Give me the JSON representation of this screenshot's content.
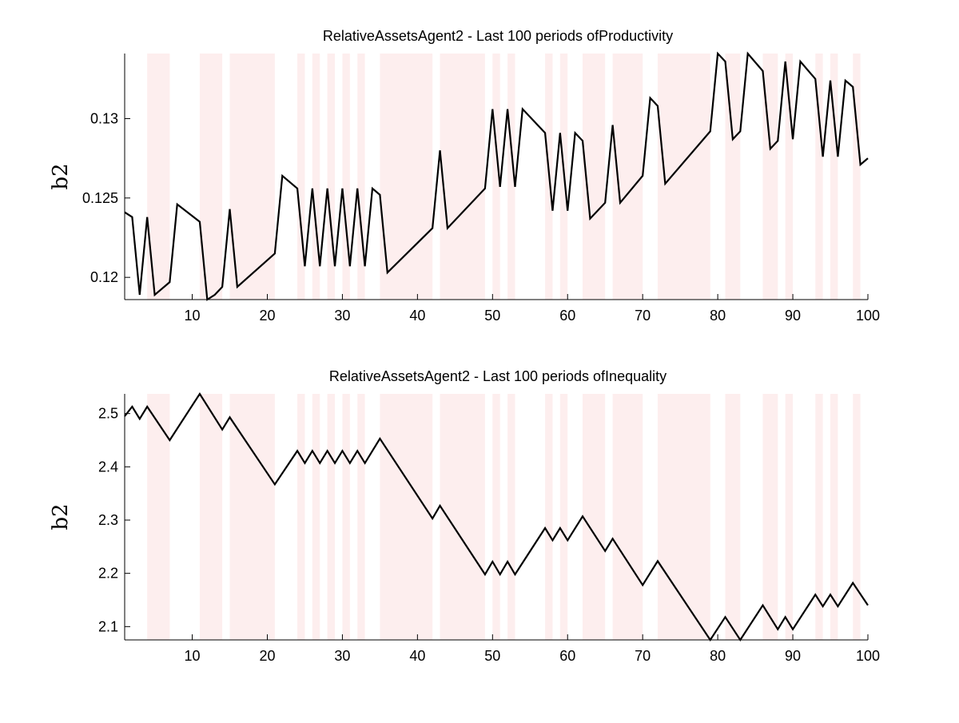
{
  "colors": {
    "background": "#ffffff",
    "shade": "#fdeeee",
    "line": "#000000",
    "axis": "#000000"
  },
  "chart_data": [
    {
      "type": "line",
      "title": "RelativeAssetsAgent2 - Last 100 periods ofProductivity",
      "xlabel": "",
      "ylabel": "b2",
      "xlim": [
        1,
        100
      ],
      "ylim": [
        0.1186,
        0.1341
      ],
      "xticks": [
        10,
        20,
        30,
        40,
        50,
        60,
        70,
        80,
        90,
        100
      ],
      "xtick_labels": [
        "10",
        "20",
        "30",
        "40",
        "50",
        "60",
        "70",
        "80",
        "90",
        "100"
      ],
      "yticks": [
        0.12,
        0.125,
        0.13
      ],
      "ytick_labels": [
        "0.12",
        "0.125",
        "0.13"
      ],
      "grid": false,
      "shaded_periods": [
        [
          4,
          7
        ],
        [
          11,
          14
        ],
        [
          15,
          21
        ],
        [
          24,
          25
        ],
        [
          26,
          27
        ],
        [
          28,
          29
        ],
        [
          30,
          31
        ],
        [
          32,
          33
        ],
        [
          35,
          42
        ],
        [
          43,
          49
        ],
        [
          50,
          51
        ],
        [
          52,
          53
        ],
        [
          57,
          58
        ],
        [
          59,
          60
        ],
        [
          62,
          65
        ],
        [
          66,
          70
        ],
        [
          72,
          79
        ],
        [
          81,
          83
        ],
        [
          86,
          88
        ],
        [
          89,
          90
        ],
        [
          93,
          94
        ],
        [
          95,
          96
        ],
        [
          98,
          99
        ]
      ],
      "series": [
        {
          "x": [
            1,
            2,
            3,
            4,
            5,
            7,
            8,
            11,
            12,
            13,
            14,
            15,
            16,
            21,
            22,
            24,
            25,
            26,
            27,
            28,
            29,
            30,
            31,
            32,
            33,
            34,
            35,
            36,
            42,
            43,
            44,
            49,
            50,
            51,
            52,
            53,
            54,
            57,
            58,
            59,
            60,
            61,
            62,
            63,
            65,
            66,
            67,
            70,
            71,
            72,
            73,
            79,
            80,
            81,
            82,
            83,
            84,
            86,
            87,
            88,
            89,
            90,
            91,
            93,
            94,
            95,
            96,
            97,
            98,
            99,
            100
          ],
          "values": [
            0.1241,
            0.1238,
            0.1189,
            0.1238,
            0.1189,
            0.1197,
            0.1246,
            0.1235,
            0.1186,
            0.1189,
            0.1194,
            0.1243,
            0.1194,
            0.1215,
            0.1264,
            0.1256,
            0.1207,
            0.1256,
            0.1207,
            0.1256,
            0.1207,
            0.1256,
            0.1207,
            0.1256,
            0.1207,
            0.1256,
            0.1252,
            0.1203,
            0.1231,
            0.128,
            0.1231,
            0.1256,
            0.1306,
            0.1257,
            0.1306,
            0.1257,
            0.1306,
            0.1291,
            0.1242,
            0.1291,
            0.1242,
            0.1291,
            0.1286,
            0.1237,
            0.1247,
            0.1296,
            0.1247,
            0.1264,
            0.1313,
            0.1308,
            0.1259,
            0.1292,
            0.1341,
            0.1336,
            0.1287,
            0.1292,
            0.1341,
            0.133,
            0.1281,
            0.1286,
            0.1336,
            0.1287,
            0.1336,
            0.1325,
            0.1276,
            0.1324,
            0.1276,
            0.1324,
            0.132,
            0.1271,
            0.1275
          ]
        }
      ]
    },
    {
      "type": "line",
      "title": "RelativeAssetsAgent2 - Last 100 periods ofInequality",
      "xlabel": "",
      "ylabel": "b2",
      "xlim": [
        1,
        100
      ],
      "ylim": [
        2.075,
        2.537
      ],
      "xticks": [
        10,
        20,
        30,
        40,
        50,
        60,
        70,
        80,
        90,
        100
      ],
      "xtick_labels": [
        "10",
        "20",
        "30",
        "40",
        "50",
        "60",
        "70",
        "80",
        "90",
        "100"
      ],
      "yticks": [
        2.1,
        2.2,
        2.3,
        2.4,
        2.5
      ],
      "ytick_labels": [
        "2.1",
        "2.2",
        "2.3",
        "2.4",
        "2.5"
      ],
      "grid": false,
      "shaded_periods": [
        [
          4,
          7
        ],
        [
          11,
          14
        ],
        [
          15,
          21
        ],
        [
          24,
          25
        ],
        [
          26,
          27
        ],
        [
          28,
          29
        ],
        [
          30,
          31
        ],
        [
          32,
          33
        ],
        [
          35,
          42
        ],
        [
          43,
          49
        ],
        [
          50,
          51
        ],
        [
          52,
          53
        ],
        [
          57,
          58
        ],
        [
          59,
          60
        ],
        [
          62,
          65
        ],
        [
          66,
          70
        ],
        [
          72,
          79
        ],
        [
          81,
          83
        ],
        [
          86,
          88
        ],
        [
          89,
          90
        ],
        [
          93,
          94
        ],
        [
          95,
          96
        ],
        [
          98,
          99
        ]
      ],
      "series": [
        {
          "x": [
            1,
            2,
            3,
            4,
            7,
            11,
            14,
            15,
            21,
            24,
            25,
            26,
            27,
            28,
            29,
            30,
            31,
            32,
            33,
            35,
            42,
            43,
            49,
            50,
            51,
            52,
            53,
            57,
            58,
            59,
            60,
            62,
            65,
            66,
            70,
            72,
            79,
            81,
            83,
            86,
            88,
            89,
            90,
            93,
            94,
            95,
            96,
            98,
            100
          ],
          "values": [
            2.495,
            2.513,
            2.49,
            2.513,
            2.45,
            2.537,
            2.47,
            2.493,
            2.367,
            2.43,
            2.407,
            2.43,
            2.407,
            2.43,
            2.407,
            2.43,
            2.407,
            2.43,
            2.407,
            2.453,
            2.303,
            2.327,
            2.198,
            2.222,
            2.198,
            2.222,
            2.198,
            2.285,
            2.262,
            2.285,
            2.262,
            2.307,
            2.242,
            2.265,
            2.178,
            2.223,
            2.075,
            2.118,
            2.075,
            2.14,
            2.095,
            2.118,
            2.095,
            2.16,
            2.138,
            2.16,
            2.138,
            2.182,
            2.14
          ]
        }
      ]
    }
  ]
}
